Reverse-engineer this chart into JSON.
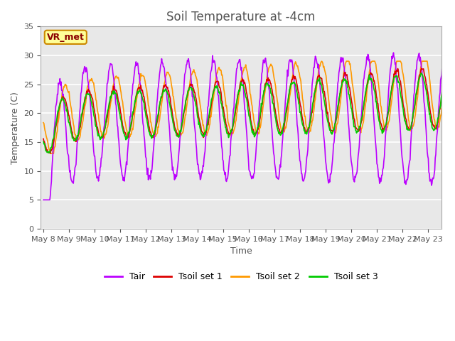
{
  "title": "Soil Temperature at -4cm",
  "xlabel": "Time",
  "ylabel": "Temperature (C)",
  "ylim": [
    0,
    35
  ],
  "bg_color": "#e8e8e8",
  "grid_color": "white",
  "line_colors": {
    "Tair": "#bb00ff",
    "Tsoil1": "#dd0000",
    "Tsoil2": "#ff9900",
    "Tsoil3": "#00cc00"
  },
  "legend_labels": [
    "Tair",
    "Tsoil set 1",
    "Tsoil set 2",
    "Tsoil set 3"
  ],
  "annotation_text": "VR_met",
  "x_tick_labels": [
    "May 8",
    "May 9",
    "May 10",
    "May 11",
    "May 12",
    "May 13",
    "May 14",
    "May 15",
    "May 16",
    "May 17",
    "May 18",
    "May 19",
    "May 20",
    "May 21",
    "May 22",
    "May 23"
  ],
  "title_fontsize": 12,
  "label_fontsize": 9,
  "tick_fontsize": 8
}
